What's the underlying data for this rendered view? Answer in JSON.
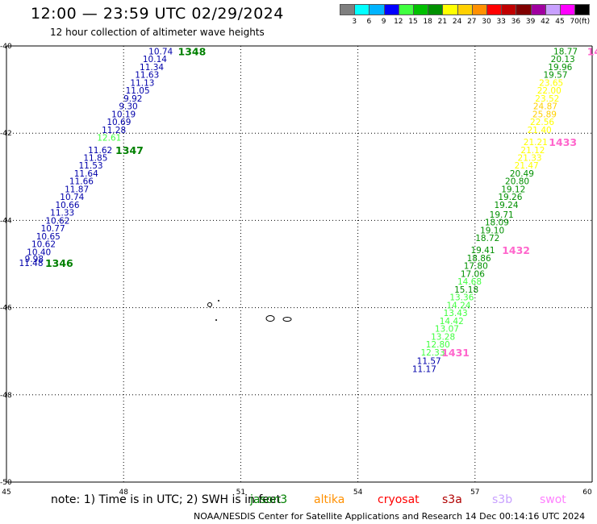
{
  "title": "12:00 — 23:59 UTC 02/29/2024",
  "subtitle": "12 hour collection of altimeter wave heights",
  "legend": {
    "unit": "(ft)",
    "levels": [
      {
        "label": "3",
        "color": "#7f7f7f"
      },
      {
        "label": "6",
        "color": "#00ffff"
      },
      {
        "label": "9",
        "color": "#00b4ff"
      },
      {
        "label": "12",
        "color": "#0000ff"
      },
      {
        "label": "15",
        "color": "#40ff40"
      },
      {
        "label": "18",
        "color": "#00c000"
      },
      {
        "label": "21",
        "color": "#009000"
      },
      {
        "label": "24",
        "color": "#ffff00"
      },
      {
        "label": "27",
        "color": "#ffd000"
      },
      {
        "label": "30",
        "color": "#ff9000"
      },
      {
        "label": "33",
        "color": "#ff0000"
      },
      {
        "label": "36",
        "color": "#c00000"
      },
      {
        "label": "39",
        "color": "#800000"
      },
      {
        "label": "42",
        "color": "#a000a0"
      },
      {
        "label": "45",
        "color": "#c8a0ff"
      },
      {
        "label": "70",
        "color": "#ff00ff"
      },
      {
        "label": "",
        "color": "#000000"
      }
    ]
  },
  "axes": {
    "x_ticks": [
      "45",
      "48",
      "51",
      "54",
      "57",
      "60"
    ],
    "y_ticks": [
      "-40",
      "-42",
      "-44",
      "-46",
      "-48",
      "-50"
    ],
    "lon_range": [
      45,
      60
    ],
    "lat_range": [
      -40,
      -50
    ]
  },
  "tracks": {
    "west": {
      "color": "#0000aa",
      "points": [
        {
          "lat": -40.12,
          "lon": 48.95,
          "v": "10.74"
        },
        {
          "lat": -40.3,
          "lon": 48.8,
          "v": "10.14"
        },
        {
          "lat": -40.48,
          "lon": 48.72,
          "v": "11.34"
        },
        {
          "lat": -40.66,
          "lon": 48.6,
          "v": "11.63"
        },
        {
          "lat": -40.84,
          "lon": 48.48,
          "v": "11.13"
        },
        {
          "lat": -41.02,
          "lon": 48.36,
          "v": "11.05"
        },
        {
          "lat": -41.2,
          "lon": 48.24,
          "v": "9.92"
        },
        {
          "lat": -41.38,
          "lon": 48.12,
          "v": "9.30"
        },
        {
          "lat": -41.56,
          "lon": 48.0,
          "v": "10.19"
        },
        {
          "lat": -41.74,
          "lon": 47.88,
          "v": "10.69"
        },
        {
          "lat": -41.92,
          "lon": 47.75,
          "v": "11.28"
        },
        {
          "lat": -42.1,
          "lon": 47.63,
          "v": "12.61",
          "color": "#40ff40"
        },
        {
          "lat": -42.38,
          "lon": 47.4,
          "v": "11.62"
        },
        {
          "lat": -42.56,
          "lon": 47.28,
          "v": "11.85"
        },
        {
          "lat": -42.74,
          "lon": 47.16,
          "v": "11.53"
        },
        {
          "lat": -42.92,
          "lon": 47.04,
          "v": "11.64"
        },
        {
          "lat": -43.1,
          "lon": 46.92,
          "v": "11.66"
        },
        {
          "lat": -43.28,
          "lon": 46.8,
          "v": "11.87"
        },
        {
          "lat": -43.46,
          "lon": 46.68,
          "v": "10.74"
        },
        {
          "lat": -43.64,
          "lon": 46.56,
          "v": "10.66"
        },
        {
          "lat": -43.82,
          "lon": 46.43,
          "v": "11.33"
        },
        {
          "lat": -44.0,
          "lon": 46.31,
          "v": "10.62"
        },
        {
          "lat": -44.18,
          "lon": 46.19,
          "v": "10.77"
        },
        {
          "lat": -44.36,
          "lon": 46.07,
          "v": "10.65"
        },
        {
          "lat": -44.54,
          "lon": 45.95,
          "v": "10.62"
        },
        {
          "lat": -44.72,
          "lon": 45.83,
          "v": "10.40"
        },
        {
          "lat": -44.88,
          "lon": 45.71,
          "v": "9.98"
        },
        {
          "lat": -44.97,
          "lon": 45.63,
          "v": "11.48"
        }
      ]
    },
    "east": {
      "points": [
        {
          "lat": -40.12,
          "lon": 59.32,
          "v": "18.77",
          "color": "#009000"
        },
        {
          "lat": -40.3,
          "lon": 59.25,
          "v": "20.13",
          "color": "#009000"
        },
        {
          "lat": -40.48,
          "lon": 59.18,
          "v": "19.96",
          "color": "#009000"
        },
        {
          "lat": -40.66,
          "lon": 59.06,
          "v": "19.57",
          "color": "#009000"
        },
        {
          "lat": -40.84,
          "lon": 58.95,
          "v": "23.65",
          "color": "#ffff00"
        },
        {
          "lat": -41.02,
          "lon": 58.9,
          "v": "22.00",
          "color": "#ffff00"
        },
        {
          "lat": -41.2,
          "lon": 58.85,
          "v": "23.52",
          "color": "#ffff00"
        },
        {
          "lat": -41.38,
          "lon": 58.8,
          "v": "24.87",
          "color": "#ffd000"
        },
        {
          "lat": -41.56,
          "lon": 58.78,
          "v": "25.89",
          "color": "#ffd000"
        },
        {
          "lat": -41.74,
          "lon": 58.72,
          "v": "22.56",
          "color": "#ffff00"
        },
        {
          "lat": -41.92,
          "lon": 58.65,
          "v": "21.40",
          "color": "#ffff00"
        },
        {
          "lat": -42.2,
          "lon": 58.55,
          "v": "21.21",
          "color": "#ffff00"
        },
        {
          "lat": -42.38,
          "lon": 58.48,
          "v": "21.12",
          "color": "#ffff00"
        },
        {
          "lat": -42.56,
          "lon": 58.4,
          "v": "21.33",
          "color": "#ffff00"
        },
        {
          "lat": -42.74,
          "lon": 58.32,
          "v": "21.47",
          "color": "#ffff00"
        },
        {
          "lat": -42.92,
          "lon": 58.2,
          "v": "20.49",
          "color": "#009000"
        },
        {
          "lat": -43.1,
          "lon": 58.08,
          "v": "20.80",
          "color": "#009000"
        },
        {
          "lat": -43.28,
          "lon": 57.98,
          "v": "19.12",
          "color": "#009000"
        },
        {
          "lat": -43.46,
          "lon": 57.9,
          "v": "19.26",
          "color": "#009000"
        },
        {
          "lat": -43.64,
          "lon": 57.8,
          "v": "19.24",
          "color": "#009000"
        },
        {
          "lat": -43.86,
          "lon": 57.68,
          "v": "19.71",
          "color": "#009000"
        },
        {
          "lat": -44.04,
          "lon": 57.56,
          "v": "18.09",
          "color": "#009000"
        },
        {
          "lat": -44.22,
          "lon": 57.44,
          "v": "19.10",
          "color": "#009000"
        },
        {
          "lat": -44.4,
          "lon": 57.32,
          "v": "18.72",
          "color": "#009000"
        },
        {
          "lat": -44.68,
          "lon": 57.2,
          "v": "19.41",
          "color": "#009000"
        },
        {
          "lat": -44.86,
          "lon": 57.1,
          "v": "18.86",
          "color": "#009000"
        },
        {
          "lat": -45.04,
          "lon": 57.02,
          "v": "17.80",
          "color": "#009000"
        },
        {
          "lat": -45.22,
          "lon": 56.94,
          "v": "17.06",
          "color": "#009000"
        },
        {
          "lat": -45.4,
          "lon": 56.86,
          "v": "14.68",
          "color": "#40ff40"
        },
        {
          "lat": -45.58,
          "lon": 56.78,
          "v": "15.18",
          "color": "#009000"
        },
        {
          "lat": -45.76,
          "lon": 56.66,
          "v": "13.36",
          "color": "#40ff40"
        },
        {
          "lat": -45.94,
          "lon": 56.58,
          "v": "14.24",
          "color": "#40ff40"
        },
        {
          "lat": -46.12,
          "lon": 56.5,
          "v": "13.43",
          "color": "#40ff40"
        },
        {
          "lat": -46.3,
          "lon": 56.4,
          "v": "14.42",
          "color": "#40ff40"
        },
        {
          "lat": -46.48,
          "lon": 56.28,
          "v": "13.07",
          "color": "#40ff40"
        },
        {
          "lat": -46.66,
          "lon": 56.18,
          "v": "13.28",
          "color": "#40ff40"
        },
        {
          "lat": -46.84,
          "lon": 56.05,
          "v": "12.80",
          "color": "#40ff40"
        },
        {
          "lat": -47.02,
          "lon": 55.92,
          "v": "12.33",
          "color": "#40ff40"
        },
        {
          "lat": -47.22,
          "lon": 55.82,
          "v": "11.57",
          "color": "#0000aa"
        },
        {
          "lat": -47.4,
          "lon": 55.7,
          "v": "11.17",
          "color": "#0000aa"
        }
      ]
    }
  },
  "pass_labels": [
    {
      "text": "1348",
      "lat": -40.12,
      "lon": 49.75,
      "color": "#008000"
    },
    {
      "text": "1347",
      "lat": -42.38,
      "lon": 48.15,
      "color": "#008000"
    },
    {
      "text": "1346",
      "lat": -44.97,
      "lon": 46.35,
      "color": "#008000"
    },
    {
      "text": "1433",
      "lon": 59.25,
      "lat": -42.2,
      "color": "#ff66cc"
    },
    {
      "text": "1432",
      "lon": 58.05,
      "lat": -44.68,
      "color": "#ff66cc"
    },
    {
      "text": "1431",
      "lon": 56.5,
      "lat": -47.02,
      "color": "#ff66cc"
    },
    {
      "text": "14",
      "lon": 60.05,
      "lat": -40.12,
      "color": "#ff66cc"
    }
  ],
  "note": "note:  1) Time is in UTC; 2) SWH is in feet",
  "satellites": [
    {
      "name": "jason3",
      "color": "#008000"
    },
    {
      "name": "altika",
      "color": "#ff9000"
    },
    {
      "name": "cryosat",
      "color": "#ff0000"
    },
    {
      "name": "s3a",
      "color": "#b00000"
    },
    {
      "name": "s3b",
      "color": "#c8a0ff"
    },
    {
      "name": "swot",
      "color": "#ff80ff"
    }
  ],
  "credit": "NOAA/NESDIS Center for Satellite Applications and Research     14 Dec 00:14:16 UTC 2024"
}
